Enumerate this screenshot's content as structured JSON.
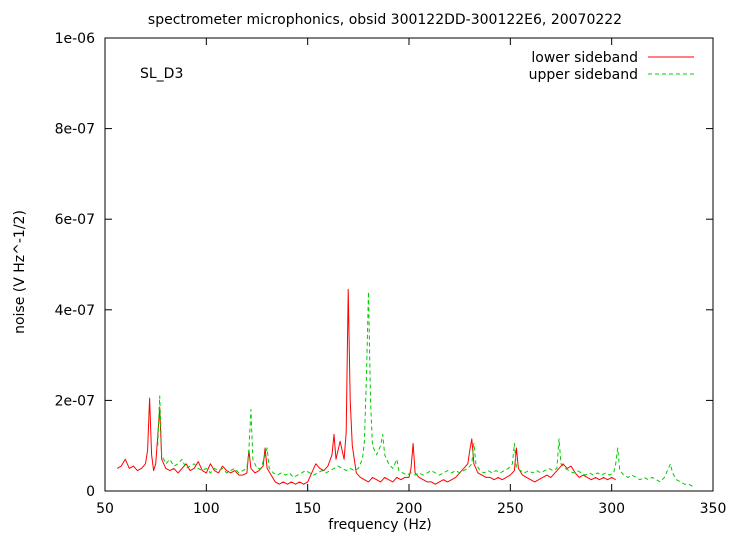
{
  "chart_data": {
    "type": "line",
    "title": "spectrometer microphonics, obsid 300122DD-300122E6, 20070222",
    "xlabel": "frequency (Hz)",
    "ylabel": "noise (V Hz^-1/2)",
    "annotation": "SL_D3",
    "xlim": [
      50,
      350
    ],
    "ylim": [
      0,
      1e-06
    ],
    "x_ticks": [
      {
        "value": 50,
        "label": "50"
      },
      {
        "value": 100,
        "label": "100"
      },
      {
        "value": 150,
        "label": "150"
      },
      {
        "value": 200,
        "label": "200"
      },
      {
        "value": 250,
        "label": "250"
      },
      {
        "value": 300,
        "label": "300"
      },
      {
        "value": 350,
        "label": "350"
      }
    ],
    "y_ticks": [
      {
        "value": 0,
        "label": "0"
      },
      {
        "value": 2e-07,
        "label": "2e-07"
      },
      {
        "value": 4e-07,
        "label": "4e-07"
      },
      {
        "value": 6e-07,
        "label": "6e-07"
      },
      {
        "value": 8e-07,
        "label": "8e-07"
      },
      {
        "value": 1e-06,
        "label": "1e-06"
      }
    ],
    "legend_position": "top-right",
    "series": [
      {
        "name": "lower sideband",
        "color": "#ff0000",
        "dash": "solid",
        "points": [
          [
            56,
            5e-08
          ],
          [
            58,
            5.5e-08
          ],
          [
            60,
            7e-08
          ],
          [
            62,
            5e-08
          ],
          [
            64,
            5.5e-08
          ],
          [
            66,
            4.5e-08
          ],
          [
            68,
            5e-08
          ],
          [
            70,
            6e-08
          ],
          [
            71,
            9e-08
          ],
          [
            72,
            2.05e-07
          ],
          [
            73,
            8e-08
          ],
          [
            74,
            4.5e-08
          ],
          [
            75,
            6e-08
          ],
          [
            76,
            1.2e-07
          ],
          [
            77,
            1.85e-07
          ],
          [
            78,
            7e-08
          ],
          [
            80,
            5e-08
          ],
          [
            82,
            4.5e-08
          ],
          [
            84,
            5e-08
          ],
          [
            86,
            4e-08
          ],
          [
            88,
            5e-08
          ],
          [
            90,
            6e-08
          ],
          [
            92,
            4.5e-08
          ],
          [
            94,
            5e-08
          ],
          [
            96,
            6.5e-08
          ],
          [
            98,
            4.5e-08
          ],
          [
            100,
            4e-08
          ],
          [
            102,
            6e-08
          ],
          [
            104,
            4.5e-08
          ],
          [
            106,
            4e-08
          ],
          [
            108,
            5.5e-08
          ],
          [
            110,
            4.5e-08
          ],
          [
            112,
            4e-08
          ],
          [
            114,
            4.5e-08
          ],
          [
            116,
            3.5e-08
          ],
          [
            118,
            3.5e-08
          ],
          [
            120,
            4e-08
          ],
          [
            121,
            9e-08
          ],
          [
            122,
            5e-08
          ],
          [
            124,
            4e-08
          ],
          [
            126,
            4.5e-08
          ],
          [
            128,
            5.5e-08
          ],
          [
            129,
            9.5e-08
          ],
          [
            130,
            5e-08
          ],
          [
            132,
            3.5e-08
          ],
          [
            134,
            2e-08
          ],
          [
            136,
            1.5e-08
          ],
          [
            138,
            2e-08
          ],
          [
            140,
            1.5e-08
          ],
          [
            142,
            2e-08
          ],
          [
            144,
            1.5e-08
          ],
          [
            146,
            2e-08
          ],
          [
            148,
            1.5e-08
          ],
          [
            150,
            2e-08
          ],
          [
            152,
            4e-08
          ],
          [
            154,
            6e-08
          ],
          [
            156,
            5e-08
          ],
          [
            158,
            4.5e-08
          ],
          [
            160,
            5.5e-08
          ],
          [
            162,
            8e-08
          ],
          [
            163,
            1.25e-07
          ],
          [
            164,
            7e-08
          ],
          [
            166,
            1.1e-07
          ],
          [
            168,
            7e-08
          ],
          [
            169,
            1.3e-07
          ],
          [
            170,
            4.45e-07
          ],
          [
            171,
            2e-07
          ],
          [
            172,
            1e-07
          ],
          [
            174,
            4e-08
          ],
          [
            176,
            3e-08
          ],
          [
            178,
            2.5e-08
          ],
          [
            180,
            2e-08
          ],
          [
            182,
            3e-08
          ],
          [
            184,
            2.5e-08
          ],
          [
            186,
            2e-08
          ],
          [
            188,
            3e-08
          ],
          [
            190,
            2.5e-08
          ],
          [
            192,
            2e-08
          ],
          [
            194,
            3e-08
          ],
          [
            196,
            2.5e-08
          ],
          [
            198,
            3e-08
          ],
          [
            200,
            3e-08
          ],
          [
            201,
            5e-08
          ],
          [
            202,
            1.05e-07
          ],
          [
            203,
            4e-08
          ],
          [
            205,
            3e-08
          ],
          [
            207,
            2.5e-08
          ],
          [
            209,
            2e-08
          ],
          [
            211,
            2e-08
          ],
          [
            213,
            1.5e-08
          ],
          [
            215,
            2e-08
          ],
          [
            217,
            2.5e-08
          ],
          [
            219,
            2e-08
          ],
          [
            221,
            2.5e-08
          ],
          [
            223,
            3e-08
          ],
          [
            225,
            4e-08
          ],
          [
            227,
            5e-08
          ],
          [
            229,
            6e-08
          ],
          [
            230,
            9e-08
          ],
          [
            231,
            1.15e-07
          ],
          [
            232,
            6e-08
          ],
          [
            234,
            4e-08
          ],
          [
            236,
            3.5e-08
          ],
          [
            238,
            3e-08
          ],
          [
            240,
            3e-08
          ],
          [
            242,
            2.5e-08
          ],
          [
            244,
            3e-08
          ],
          [
            246,
            2.5e-08
          ],
          [
            248,
            3e-08
          ],
          [
            250,
            3.5e-08
          ],
          [
            252,
            4.5e-08
          ],
          [
            253,
            9.5e-08
          ],
          [
            254,
            5e-08
          ],
          [
            256,
            3.5e-08
          ],
          [
            258,
            3e-08
          ],
          [
            260,
            2.5e-08
          ],
          [
            262,
            2e-08
          ],
          [
            264,
            2.5e-08
          ],
          [
            266,
            3e-08
          ],
          [
            268,
            3.5e-08
          ],
          [
            270,
            3e-08
          ],
          [
            272,
            4e-08
          ],
          [
            274,
            5e-08
          ],
          [
            276,
            6e-08
          ],
          [
            278,
            5e-08
          ],
          [
            280,
            5.5e-08
          ],
          [
            282,
            4e-08
          ],
          [
            284,
            3e-08
          ],
          [
            286,
            3.5e-08
          ],
          [
            288,
            3e-08
          ],
          [
            290,
            2.5e-08
          ],
          [
            292,
            3e-08
          ],
          [
            294,
            2.5e-08
          ],
          [
            296,
            3e-08
          ],
          [
            298,
            2.5e-08
          ],
          [
            300,
            3e-08
          ],
          [
            302,
            2.5e-08
          ]
        ]
      },
      {
        "name": "upper sideband",
        "color": "#00cc00",
        "dash": "dashed",
        "points": [
          [
            76,
            1e-07
          ],
          [
            77,
            2.1e-07
          ],
          [
            78,
            8e-08
          ],
          [
            80,
            6e-08
          ],
          [
            82,
            7e-08
          ],
          [
            84,
            5.5e-08
          ],
          [
            86,
            6e-08
          ],
          [
            88,
            7e-08
          ],
          [
            90,
            5e-08
          ],
          [
            92,
            5.5e-08
          ],
          [
            94,
            6e-08
          ],
          [
            96,
            5e-08
          ],
          [
            98,
            4.5e-08
          ],
          [
            100,
            5e-08
          ],
          [
            102,
            4e-08
          ],
          [
            104,
            5e-08
          ],
          [
            106,
            4.5e-08
          ],
          [
            108,
            5e-08
          ],
          [
            110,
            4e-08
          ],
          [
            112,
            4.5e-08
          ],
          [
            114,
            5e-08
          ],
          [
            116,
            4e-08
          ],
          [
            118,
            4.5e-08
          ],
          [
            120,
            5e-08
          ],
          [
            121,
            9e-08
          ],
          [
            122,
            1.8e-07
          ],
          [
            123,
            7e-08
          ],
          [
            125,
            5e-08
          ],
          [
            127,
            5e-08
          ],
          [
            129,
            8e-08
          ],
          [
            130,
            9.5e-08
          ],
          [
            131,
            5e-08
          ],
          [
            133,
            4e-08
          ],
          [
            135,
            3.5e-08
          ],
          [
            137,
            4e-08
          ],
          [
            139,
            3.5e-08
          ],
          [
            141,
            4e-08
          ],
          [
            143,
            3e-08
          ],
          [
            145,
            3.5e-08
          ],
          [
            147,
            4e-08
          ],
          [
            149,
            4.5e-08
          ],
          [
            151,
            4e-08
          ],
          [
            153,
            3.5e-08
          ],
          [
            155,
            4e-08
          ],
          [
            157,
            4.5e-08
          ],
          [
            159,
            4e-08
          ],
          [
            161,
            4.5e-08
          ],
          [
            163,
            5e-08
          ],
          [
            165,
            5.5e-08
          ],
          [
            167,
            5e-08
          ],
          [
            169,
            4.5e-08
          ],
          [
            171,
            5e-08
          ],
          [
            173,
            4.5e-08
          ],
          [
            175,
            5e-08
          ],
          [
            177,
            7e-08
          ],
          [
            178,
            1.1e-07
          ],
          [
            179,
            2.5e-07
          ],
          [
            180,
            4.4e-07
          ],
          [
            181,
            2e-07
          ],
          [
            182,
            1e-07
          ],
          [
            184,
            8e-08
          ],
          [
            186,
            1e-07
          ],
          [
            187,
            1.25e-07
          ],
          [
            188,
            8e-08
          ],
          [
            190,
            6e-08
          ],
          [
            192,
            5e-08
          ],
          [
            194,
            7e-08
          ],
          [
            195,
            4.5e-08
          ],
          [
            197,
            4e-08
          ],
          [
            199,
            3.5e-08
          ],
          [
            201,
            4e-08
          ],
          [
            203,
            3.5e-08
          ],
          [
            205,
            4e-08
          ],
          [
            207,
            3.5e-08
          ],
          [
            209,
            4e-08
          ],
          [
            211,
            4.5e-08
          ],
          [
            213,
            4e-08
          ],
          [
            215,
            3.5e-08
          ],
          [
            217,
            4e-08
          ],
          [
            219,
            4.5e-08
          ],
          [
            221,
            4e-08
          ],
          [
            223,
            4.5e-08
          ],
          [
            225,
            4e-08
          ],
          [
            227,
            4.5e-08
          ],
          [
            229,
            5e-08
          ],
          [
            231,
            6e-08
          ],
          [
            232,
            1.05e-07
          ],
          [
            233,
            6e-08
          ],
          [
            235,
            4.5e-08
          ],
          [
            237,
            4e-08
          ],
          [
            239,
            4.5e-08
          ],
          [
            241,
            4e-08
          ],
          [
            243,
            4.5e-08
          ],
          [
            245,
            4e-08
          ],
          [
            247,
            4.5e-08
          ],
          [
            249,
            5e-08
          ],
          [
            251,
            6e-08
          ],
          [
            252,
            1.05e-07
          ],
          [
            253,
            5e-08
          ],
          [
            255,
            4.5e-08
          ],
          [
            257,
            4e-08
          ],
          [
            259,
            4.5e-08
          ],
          [
            261,
            4e-08
          ],
          [
            263,
            4.5e-08
          ],
          [
            265,
            4e-08
          ],
          [
            267,
            4.5e-08
          ],
          [
            269,
            5e-08
          ],
          [
            271,
            4.5e-08
          ],
          [
            273,
            5e-08
          ],
          [
            274,
            1.15e-07
          ],
          [
            275,
            6e-08
          ],
          [
            277,
            5e-08
          ],
          [
            279,
            4.5e-08
          ],
          [
            281,
            4e-08
          ],
          [
            283,
            4.5e-08
          ],
          [
            285,
            4e-08
          ],
          [
            287,
            3.5e-08
          ],
          [
            289,
            4e-08
          ],
          [
            291,
            3.5e-08
          ],
          [
            293,
            4e-08
          ],
          [
            295,
            3.5e-08
          ],
          [
            297,
            4e-08
          ],
          [
            299,
            3.5e-08
          ],
          [
            301,
            4e-08
          ],
          [
            302,
            6e-08
          ],
          [
            303,
            9.5e-08
          ],
          [
            304,
            4.5e-08
          ],
          [
            306,
            3.5e-08
          ],
          [
            308,
            3e-08
          ],
          [
            310,
            3.5e-08
          ],
          [
            312,
            3e-08
          ],
          [
            314,
            2.5e-08
          ],
          [
            316,
            3e-08
          ],
          [
            318,
            2.5e-08
          ],
          [
            320,
            3e-08
          ],
          [
            322,
            2.5e-08
          ],
          [
            324,
            2e-08
          ],
          [
            326,
            3e-08
          ],
          [
            328,
            5e-08
          ],
          [
            329,
            6e-08
          ],
          [
            330,
            4e-08
          ],
          [
            332,
            2.5e-08
          ],
          [
            334,
            2e-08
          ],
          [
            336,
            1.5e-08
          ],
          [
            338,
            1.5e-08
          ],
          [
            340,
            1e-08
          ]
        ]
      }
    ]
  }
}
